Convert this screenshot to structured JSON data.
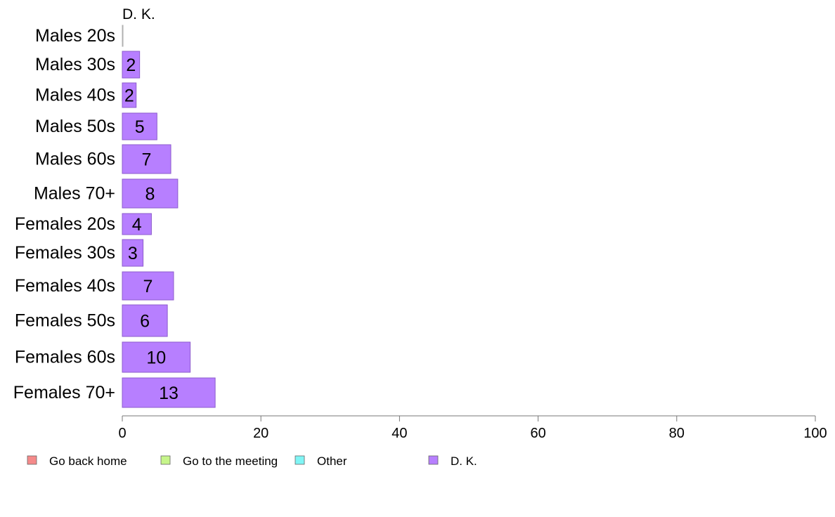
{
  "chart_data": {
    "type": "bar",
    "orientation": "horizontal",
    "panel_title": "D. K.",
    "categories": [
      "Males 20s",
      "Males 30s",
      "Males 40s",
      "Males 50s",
      "Males 60s",
      "Males 70+",
      "Females 20s",
      "Females 30s",
      "Females 40s",
      "Females 50s",
      "Females 60s",
      "Females 70+"
    ],
    "series": [
      {
        "name": "D. K.",
        "color": "#b77fff",
        "values": [
          0,
          2.5,
          2,
          5,
          7,
          8,
          4.2,
          3,
          7.4,
          6.5,
          9.8,
          13.4
        ],
        "labels": [
          "",
          "2",
          "2",
          "5",
          "7",
          "8",
          "4",
          "3",
          "7",
          "6",
          "10",
          "13"
        ]
      }
    ],
    "xlim": [
      0,
      100
    ],
    "xticks": [
      "0",
      "20",
      "40",
      "60",
      "80",
      "100"
    ],
    "grid": false,
    "legend": {
      "placement": "bottom",
      "items": [
        {
          "label": "Go back home",
          "color": "#f58a8a"
        },
        {
          "label": "Go to the meeting",
          "color": "#c6f58a"
        },
        {
          "label": "Other",
          "color": "#80f5f5"
        },
        {
          "label": "D. K.",
          "color": "#b77fff"
        }
      ]
    }
  }
}
